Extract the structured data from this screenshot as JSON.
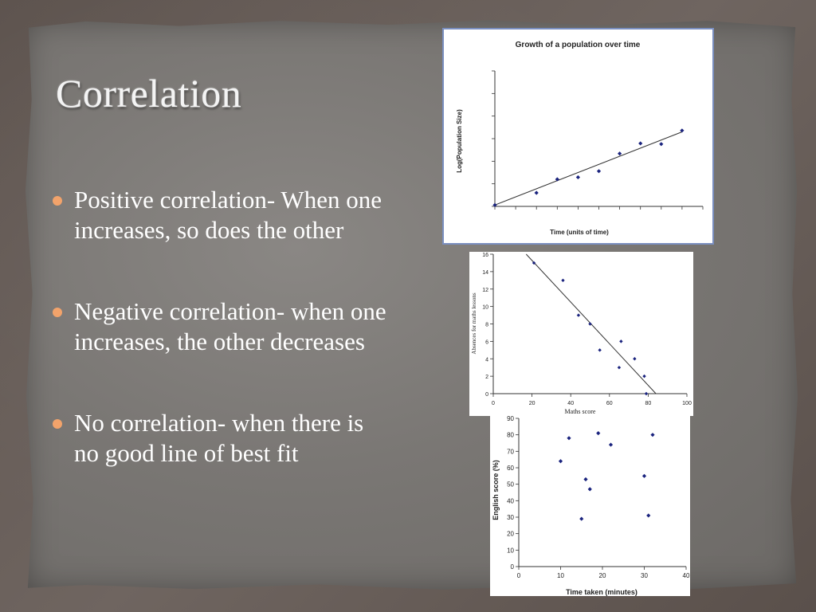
{
  "slide": {
    "title": "Correlation",
    "bullet_color": "#f2a36b",
    "bullets": [
      "Positive correlation- When one increases, so does the other",
      "Negative correlation- when one increases, the other decreases",
      "No correlation- when there is no good line of best fit"
    ]
  },
  "chart_data": [
    {
      "type": "scatter",
      "title": "Growth of a population over time",
      "xlabel": "Time (units of time)",
      "ylabel": "Log(Population Size)",
      "xlim": [
        0,
        10
      ],
      "ylim": [
        0,
        10
      ],
      "x": [
        0,
        2,
        3,
        4,
        5,
        6,
        7,
        8,
        9
      ],
      "y": [
        0.1,
        1.0,
        2.0,
        2.15,
        2.6,
        3.9,
        4.65,
        4.6,
        5.6
      ],
      "trendline": [
        [
          0,
          0.1
        ],
        [
          9,
          5.5
        ]
      ]
    },
    {
      "type": "scatter",
      "title": "",
      "xlabel": "Maths score",
      "ylabel": "Absences for maths lessons",
      "xlim": [
        0,
        100
      ],
      "ylim": [
        0,
        16
      ],
      "xticks": [
        "0",
        "20",
        "40",
        "60",
        "80",
        "100"
      ],
      "yticks": [
        "0",
        "2",
        "4",
        "6",
        "8",
        "10",
        "12",
        "14",
        "16"
      ],
      "x": [
        21,
        36,
        44,
        50,
        55,
        65,
        66,
        73,
        78,
        79
      ],
      "y": [
        15,
        13,
        9,
        8,
        5,
        3,
        6,
        4,
        2,
        0
      ],
      "trendline": [
        [
          17,
          16
        ],
        [
          84,
          0
        ]
      ]
    },
    {
      "type": "scatter",
      "title": "",
      "xlabel": "Time taken (minutes)",
      "ylabel": "English score (%)",
      "xlim": [
        0,
        40
      ],
      "ylim": [
        0,
        90
      ],
      "xticks": [
        "0",
        "10",
        "20",
        "30",
        "40"
      ],
      "yticks": [
        "0",
        "10",
        "20",
        "30",
        "40",
        "50",
        "60",
        "70",
        "80",
        "90"
      ],
      "x": [
        10,
        12,
        15,
        16,
        17,
        19,
        22,
        30,
        31,
        32
      ],
      "y": [
        64,
        78,
        29,
        53,
        47,
        81,
        74,
        55,
        31,
        80
      ]
    }
  ]
}
